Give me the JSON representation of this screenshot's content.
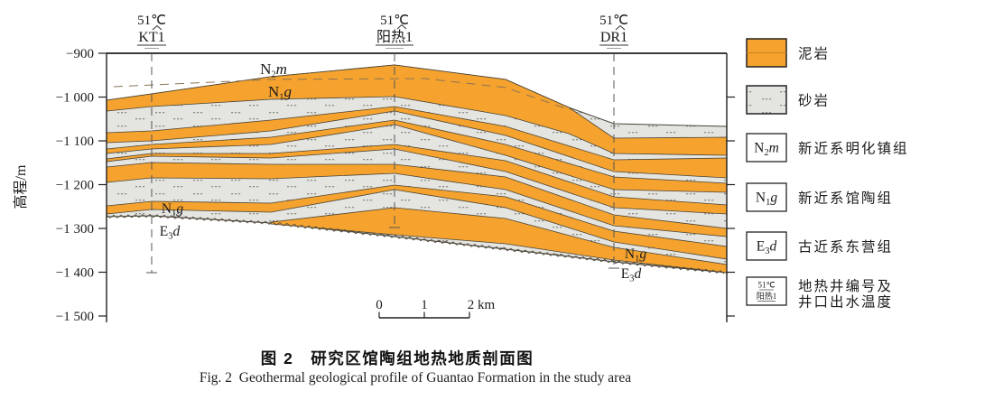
{
  "figure": {
    "yaxis": {
      "title": "高程/m",
      "ticks": [
        "−900",
        "−1 000",
        "−1 100",
        "−1 200",
        "−1 300",
        "−1 400",
        "−1 500"
      ]
    },
    "wells": [
      {
        "temp": "51℃",
        "name": "KT1"
      },
      {
        "temp": "51℃",
        "name": "阳热1"
      },
      {
        "temp": "51℃",
        "name": "DR1"
      }
    ],
    "formations": {
      "n2m": {
        "pre": "N",
        "sub": "2",
        "post": "m"
      },
      "n1g": {
        "pre": "N",
        "sub": "1",
        "post": "g"
      },
      "e3d": {
        "pre": "E",
        "sub": "3",
        "post": "d"
      }
    },
    "scalebar": {
      "t0": "0",
      "t1": "1",
      "t2": "2 km"
    },
    "legend": {
      "items": [
        "泥岩",
        "砂岩",
        "新近系明化镇组",
        "新近系馆陶组",
        "古近系东营组"
      ],
      "well_item": {
        "temp": "51℃",
        "name": "阳热1",
        "label1": "地热井编号及",
        "label2": "井口出水温度"
      }
    },
    "caption": {
      "zh": "图 2　研究区馆陶组地热地质剖面图",
      "en": "Fig. 2  Geothermal geological profile of Guantao Formation in the study area"
    }
  },
  "colors": {
    "mudstone": "#F5A32E",
    "mudstone_line": "#C8861E",
    "sandstone": "#E4E4E1",
    "sandstone_dot": "#8F8F88",
    "outline": "#4A4436",
    "frame": "#1F1F1F",
    "dashed_boundary": "#8B7355"
  }
}
